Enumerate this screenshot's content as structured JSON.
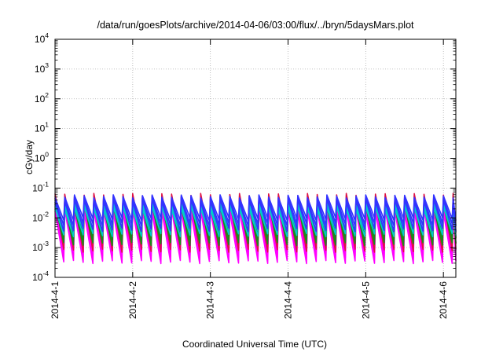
{
  "chart_data": {
    "type": "line",
    "title": "/data/run/goesPlots/archive/2014-04-06/03:00/flux/../bryn/5daysMars.plot",
    "xlabel": "Coordinated Universal Time (UTC)",
    "ylabel": "cGy/day",
    "x_range": [
      "2014-04-01",
      "2014-04-06 03:00"
    ],
    "x_tick_labels": [
      "2014-4-1",
      "2014-4-2",
      "2014-4-3",
      "2014-4-4",
      "2014-4-5",
      "2014-4-6"
    ],
    "x_ticks_days": [
      0,
      1,
      2,
      3,
      4,
      5
    ],
    "x_range_days": [
      0,
      5.16
    ],
    "y_scale": "log",
    "ylim": [
      0.0001,
      10000
    ],
    "y_tick_exponents": [
      -4,
      -3,
      -2,
      -1,
      0,
      1,
      2,
      3,
      4
    ],
    "y_tick_base": "10",
    "grid": true,
    "legend": "none",
    "sawtooth_period_days": 0.125,
    "series": [
      {
        "color": "#ff00ff",
        "peak": 0.02,
        "trough": 0.0005
      },
      {
        "color": "#dd1144",
        "peak": 0.05,
        "trough": 0.0012
      },
      {
        "color": "#1a8a1a",
        "peak": 0.03,
        "trough": 0.002
      },
      {
        "color": "#00cccc",
        "peak": 0.025,
        "trough": 0.004
      },
      {
        "color": "#3333ff",
        "peak": 0.045,
        "trough": 0.006
      }
    ]
  }
}
